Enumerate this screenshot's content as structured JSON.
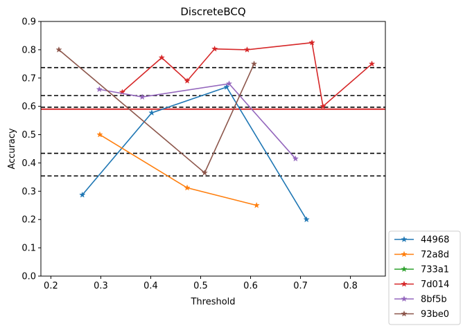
{
  "chart_data": {
    "type": "line",
    "title": "DiscreteBCQ",
    "xlabel": "Threshold",
    "ylabel": "Accuracy",
    "xlim": [
      0.18,
      0.87
    ],
    "ylim": [
      0.0,
      0.9
    ],
    "xticks": [
      0.2,
      0.3,
      0.4,
      0.5,
      0.6,
      0.7,
      0.8
    ],
    "xtick_labels": [
      "0.2",
      "0.3",
      "0.4",
      "0.5",
      "0.6",
      "0.7",
      "0.8"
    ],
    "yticks": [
      0.0,
      0.1,
      0.2,
      0.3,
      0.4,
      0.5,
      0.6,
      0.7,
      0.8,
      0.9
    ],
    "ytick_labels": [
      "0.0",
      "0.1",
      "0.2",
      "0.3",
      "0.4",
      "0.5",
      "0.6",
      "0.7",
      "0.8",
      "0.9"
    ],
    "grid": false,
    "legend_position": "outside-bottom-right",
    "marker": "star",
    "series": [
      {
        "name": "44968",
        "color": "#1f77b4",
        "points": [
          [
            0.263,
            0.287
          ],
          [
            0.402,
            0.577
          ],
          [
            0.552,
            0.668
          ],
          [
            0.712,
            0.2
          ]
        ]
      },
      {
        "name": "72a8d",
        "color": "#ff7f0e",
        "points": [
          [
            0.298,
            0.5
          ],
          [
            0.473,
            0.312
          ],
          [
            0.612,
            0.25
          ]
        ]
      },
      {
        "name": "733a1",
        "color": "#2ca02c",
        "points": []
      },
      {
        "name": "7d014",
        "color": "#d62728",
        "points": [
          [
            0.343,
            0.65
          ],
          [
            0.422,
            0.772
          ],
          [
            0.473,
            0.69
          ],
          [
            0.528,
            0.803
          ],
          [
            0.593,
            0.8
          ],
          [
            0.723,
            0.825
          ],
          [
            0.745,
            0.6
          ],
          [
            0.843,
            0.75
          ]
        ]
      },
      {
        "name": "8bf5b",
        "color": "#9467bd",
        "points": [
          [
            0.297,
            0.66
          ],
          [
            0.383,
            0.633
          ],
          [
            0.557,
            0.68
          ],
          [
            0.69,
            0.415
          ]
        ]
      },
      {
        "name": "93be0",
        "color": "#8c564b",
        "points": [
          [
            0.216,
            0.8
          ],
          [
            0.508,
            0.365
          ],
          [
            0.607,
            0.75
          ]
        ]
      }
    ],
    "reference_lines": [
      {
        "style": "dashed",
        "color": "#000000",
        "y": 0.737
      },
      {
        "style": "dashed",
        "color": "#000000",
        "y": 0.638
      },
      {
        "style": "dashed",
        "color": "#000000",
        "y": 0.597
      },
      {
        "style": "dashed",
        "color": "#000000",
        "y": 0.434
      },
      {
        "style": "dashed",
        "color": "#000000",
        "y": 0.354
      },
      {
        "style": "solid",
        "color": "#d62728",
        "y": 0.59
      }
    ]
  }
}
